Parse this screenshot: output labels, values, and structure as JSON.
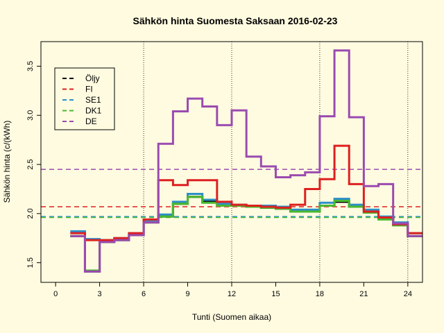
{
  "chart_data": {
    "type": "line",
    "title": "Sähkön hinta Suomesta Saksaan 2016-02-23",
    "xlabel": "Tunti (Suomen aikaa)",
    "ylabel": "Sähkön hinta (c/(kWh)",
    "xlim": [
      -1,
      25
    ],
    "ylim": [
      1.3,
      3.75
    ],
    "xticks": [
      0,
      3,
      6,
      9,
      12,
      15,
      18,
      21,
      24
    ],
    "yticks": [
      1.5,
      2.0,
      2.5,
      3.0,
      3.5
    ],
    "vlines": [
      6,
      12,
      18,
      24
    ],
    "legend_position": "top-left",
    "hours": [
      1,
      2,
      3,
      4,
      5,
      6,
      7,
      8,
      9,
      10,
      11,
      12,
      13,
      14,
      15,
      16,
      17,
      18,
      19,
      20,
      21,
      22,
      23,
      24,
      25
    ],
    "series": [
      {
        "name": "Öljy",
        "color": "#000000",
        "values": [
          1.77,
          1.41,
          1.71,
          1.73,
          1.78,
          1.91,
          1.97,
          2.1,
          2.17,
          2.12,
          2.09,
          2.08,
          2.07,
          2.06,
          2.05,
          2.02,
          2.02,
          2.08,
          2.12,
          2.07,
          2.02,
          1.95,
          1.89,
          1.77,
          1.77
        ]
      },
      {
        "name": "FI",
        "color": "#dd2020",
        "values": [
          1.8,
          1.73,
          1.73,
          1.75,
          1.8,
          1.94,
          2.34,
          2.29,
          2.34,
          2.34,
          2.12,
          2.09,
          2.08,
          2.07,
          2.06,
          2.09,
          2.25,
          2.35,
          2.69,
          2.3,
          2.02,
          1.96,
          1.89,
          1.8,
          1.8
        ]
      },
      {
        "name": "SE1",
        "color": "#2a8fc8",
        "values": [
          1.82,
          1.74,
          1.73,
          1.75,
          1.8,
          1.92,
          1.99,
          2.12,
          2.2,
          2.14,
          2.1,
          2.09,
          2.08,
          2.08,
          2.07,
          2.04,
          2.04,
          2.11,
          2.15,
          2.09,
          2.04,
          1.97,
          1.91,
          1.8,
          1.8
        ]
      },
      {
        "name": "DK1",
        "color": "#4ab830",
        "values": [
          1.77,
          1.42,
          1.71,
          1.73,
          1.78,
          1.91,
          1.97,
          2.1,
          2.17,
          2.11,
          2.08,
          2.08,
          2.07,
          2.06,
          2.05,
          2.02,
          2.02,
          2.08,
          2.13,
          2.07,
          2.01,
          1.94,
          1.88,
          1.77,
          1.77
        ]
      },
      {
        "name": "DE",
        "color": "#9a4bb0",
        "values": [
          1.77,
          1.41,
          1.71,
          1.73,
          1.78,
          1.91,
          2.71,
          3.04,
          3.17,
          3.09,
          2.9,
          3.05,
          2.58,
          2.48,
          2.37,
          2.39,
          2.42,
          2.99,
          3.66,
          2.98,
          2.28,
          2.3,
          1.9,
          1.77,
          1.77
        ]
      }
    ],
    "hlines": [
      {
        "name": "FI",
        "color": "#dd2020",
        "y": 2.07
      },
      {
        "name": "SE1",
        "color": "#2a8fc8",
        "y": 1.97
      },
      {
        "name": "DK1",
        "color": "#4ab830",
        "y": 1.96
      },
      {
        "name": "DE",
        "color": "#9a4bb0",
        "y": 2.45
      }
    ]
  }
}
